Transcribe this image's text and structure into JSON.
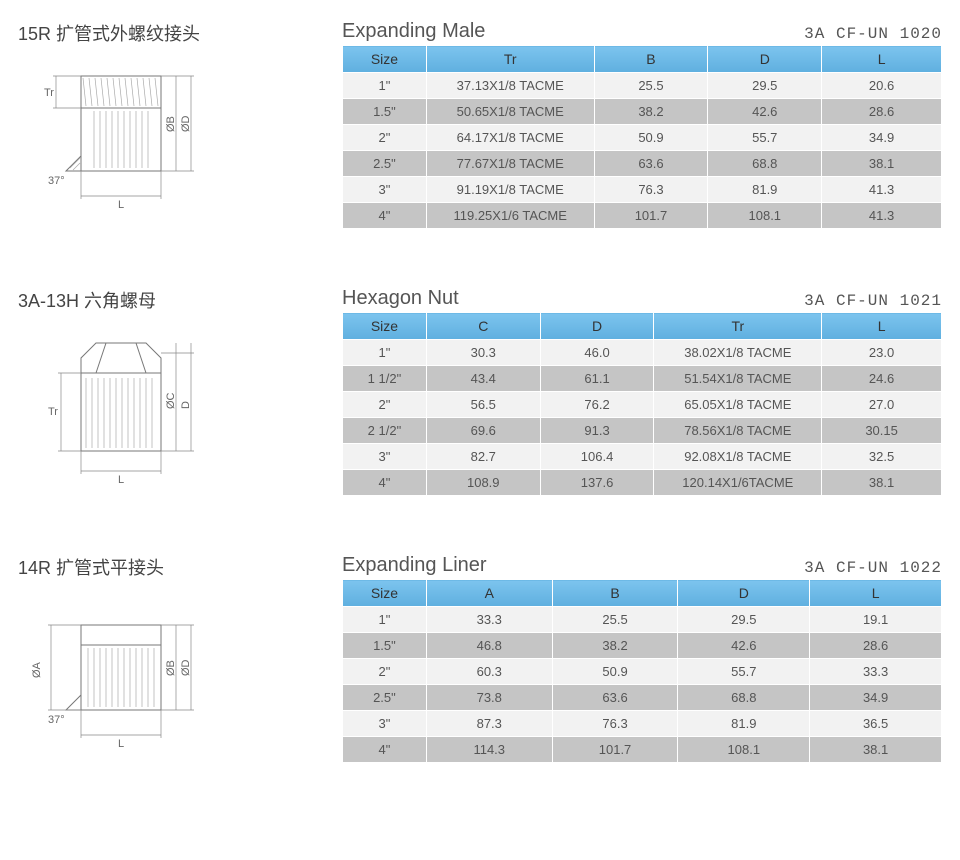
{
  "colors": {
    "header_bg": "#6bb8e6",
    "row_odd": "#f2f2f2",
    "row_even": "#c5c5c5",
    "border": "#ffffff",
    "text": "#555555",
    "title": "#444444"
  },
  "typography": {
    "cn_title_fontsize": 18,
    "en_title_fontsize": 20,
    "partno_fontsize": 16,
    "cell_fontsize": 13,
    "header_fontsize": 14
  },
  "sections": [
    {
      "cn_title": "15R 扩管式外螺纹接头",
      "en_title": "Expanding Male",
      "part_no": "3A CF-UN 1020",
      "diagram_labels": {
        "left": "Tr",
        "angle": "37°",
        "right1": "ØB",
        "right2": "ØD",
        "bottom": "L"
      },
      "columns": [
        "Size",
        "Tr",
        "B",
        "D",
        "L"
      ],
      "col_widths": [
        "14%",
        "28%",
        "19%",
        "19%",
        "20%"
      ],
      "rows": [
        [
          "1\"",
          "37.13X1/8  TACME",
          "25.5",
          "29.5",
          "20.6"
        ],
        [
          "1.5\"",
          "50.65X1/8  TACME",
          "38.2",
          "42.6",
          "28.6"
        ],
        [
          "2\"",
          "64.17X1/8  TACME",
          "50.9",
          "55.7",
          "34.9"
        ],
        [
          "2.5\"",
          "77.67X1/8  TACME",
          "63.6",
          "68.8",
          "38.1"
        ],
        [
          "3\"",
          "91.19X1/8  TACME",
          "76.3",
          "81.9",
          "41.3"
        ],
        [
          "4\"",
          "119.25X1/6  TACME",
          "101.7",
          "108.1",
          "41.3"
        ]
      ]
    },
    {
      "cn_title": "3A-13H 六角螺母",
      "en_title": "Hexagon Nut",
      "part_no": "3A CF-UN 1021",
      "diagram_labels": {
        "left": "Tr",
        "right1": "ØC",
        "right2": "D",
        "bottom": "L"
      },
      "columns": [
        "Size",
        "C",
        "D",
        "Tr",
        "L"
      ],
      "col_widths": [
        "14%",
        "19%",
        "19%",
        "28%",
        "20%"
      ],
      "rows": [
        [
          "1\"",
          "30.3",
          "46.0",
          "38.02X1/8 TACME",
          "23.0"
        ],
        [
          "1 1/2\"",
          "43.4",
          "61.1",
          "51.54X1/8 TACME",
          "24.6"
        ],
        [
          "2\"",
          "56.5",
          "76.2",
          "65.05X1/8 TACME",
          "27.0"
        ],
        [
          "2 1/2\"",
          "69.6",
          "91.3",
          "78.56X1/8 TACME",
          "30.15"
        ],
        [
          "3\"",
          "82.7",
          "106.4",
          "92.08X1/8 TACME",
          "32.5"
        ],
        [
          "4\"",
          "108.9",
          "137.6",
          "120.14X1/6TACME",
          "38.1"
        ]
      ]
    },
    {
      "cn_title": "14R 扩管式平接头",
      "en_title": "Expanding Liner",
      "part_no": "3A CF-UN 1022",
      "diagram_labels": {
        "left": "ØA",
        "angle": "37°",
        "right1": "ØB",
        "right2": "ØD",
        "bottom": "L"
      },
      "columns": [
        "Size",
        "A",
        "B",
        "D",
        "L"
      ],
      "col_widths": [
        "14%",
        "21%",
        "21%",
        "22%",
        "22%"
      ],
      "rows": [
        [
          "1\"",
          "33.3",
          "25.5",
          "29.5",
          "19.1"
        ],
        [
          "1.5\"",
          "46.8",
          "38.2",
          "42.6",
          "28.6"
        ],
        [
          "2\"",
          "60.3",
          "50.9",
          "55.7",
          "33.3"
        ],
        [
          "2.5\"",
          "73.8",
          "63.6",
          "68.8",
          "34.9"
        ],
        [
          "3\"",
          "87.3",
          "76.3",
          "81.9",
          "36.5"
        ],
        [
          "4\"",
          "114.3",
          "101.7",
          "108.1",
          "38.1"
        ]
      ]
    }
  ]
}
